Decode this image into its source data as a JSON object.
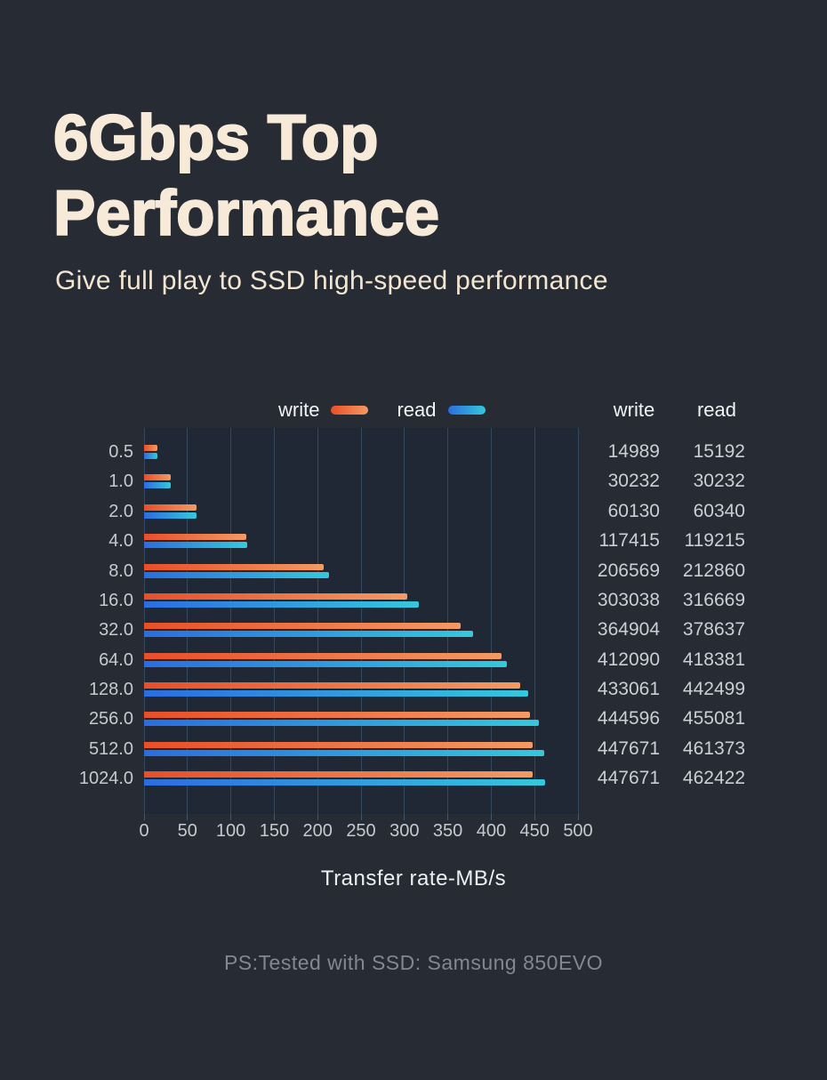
{
  "page": {
    "title": "6Gbps Top Performance",
    "subtitle": "Give full play to SSD high-speed performance",
    "footer_note": "PS:Tested with SSD: Samsung 850EVO"
  },
  "colors": {
    "background": "#272b33",
    "plot_background": "#202735",
    "gridline": "#35475c",
    "title_text": "#f7ead8",
    "subtitle_text": "#f2e6d2",
    "axis_text": "#c6c9cf",
    "table_text": "#cbced4",
    "legend_text": "#f2f3f5",
    "footer_text": "#82888f",
    "write_gradient_start": "#e84f28",
    "write_gradient_end": "#f49a62",
    "read_gradient_start": "#2b6de0",
    "read_gradient_end": "#35c8dc"
  },
  "chart_data": {
    "type": "bar",
    "orientation": "horizontal",
    "categories": [
      "0.5",
      "1.0",
      "2.0",
      "4.0",
      "8.0",
      "16.0",
      "32.0",
      "64.0",
      "128.0",
      "256.0",
      "512.0",
      "1024.0"
    ],
    "series": [
      {
        "name": "write",
        "values": [
          14989,
          30232,
          60130,
          117415,
          206569,
          303038,
          364904,
          412090,
          433061,
          444596,
          447671,
          447671
        ]
      },
      {
        "name": "read",
        "values": [
          15192,
          30232,
          60340,
          119215,
          212860,
          316669,
          378637,
          418381,
          442499,
          455081,
          461373,
          462422
        ]
      }
    ],
    "x_ticks": [
      "0",
      "50",
      "100",
      "150",
      "200",
      "250",
      "300",
      "350",
      "400",
      "450",
      "500"
    ],
    "xlim": [
      0,
      500
    ],
    "xlabel": "Transfer rate-MB/s",
    "value_to_axis_divisor": 1000,
    "grid": true,
    "legend_position": "top"
  },
  "value_table": {
    "headers": [
      "write",
      "read"
    ]
  }
}
